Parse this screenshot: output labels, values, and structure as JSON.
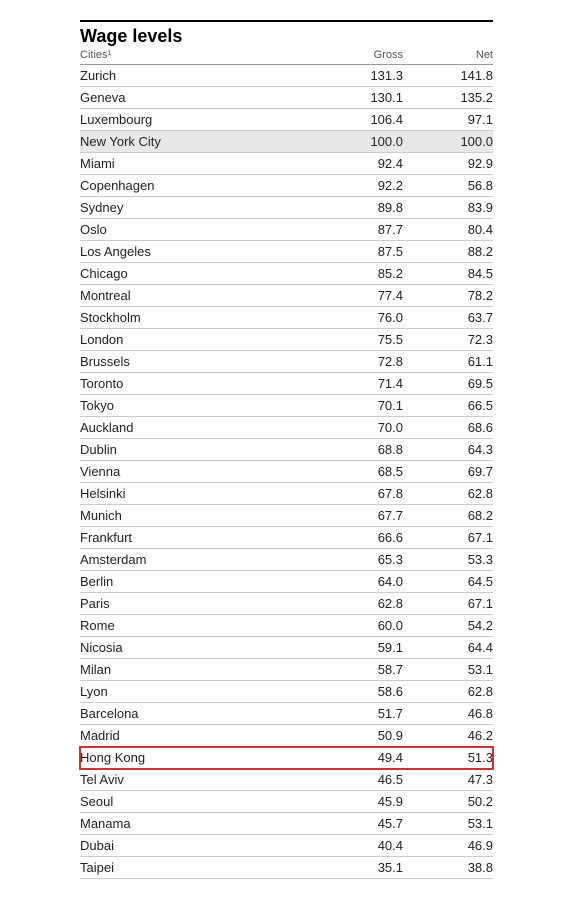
{
  "table": {
    "title": "Wage levels",
    "columns": {
      "city_label": "Cities¹",
      "gross_label": "Gross",
      "net_label": "Net"
    },
    "shaded_color": "#e8e8e8",
    "highlight_color": "#cc3333",
    "border_color": "#cccccc",
    "top_rule_color": "#000000",
    "rows": [
      {
        "city": "Zurich",
        "gross": "131.3",
        "net": "141.8",
        "shaded": false,
        "highlighted": false
      },
      {
        "city": "Geneva",
        "gross": "130.1",
        "net": "135.2",
        "shaded": false,
        "highlighted": false
      },
      {
        "city": "Luxembourg",
        "gross": "106.4",
        "net": "97.1",
        "shaded": false,
        "highlighted": false
      },
      {
        "city": "New York City",
        "gross": "100.0",
        "net": "100.0",
        "shaded": true,
        "highlighted": false
      },
      {
        "city": "Miami",
        "gross": "92.4",
        "net": "92.9",
        "shaded": false,
        "highlighted": false
      },
      {
        "city": "Copenhagen",
        "gross": "92.2",
        "net": "56.8",
        "shaded": false,
        "highlighted": false
      },
      {
        "city": "Sydney",
        "gross": "89.8",
        "net": "83.9",
        "shaded": false,
        "highlighted": false
      },
      {
        "city": "Oslo",
        "gross": "87.7",
        "net": "80.4",
        "shaded": false,
        "highlighted": false
      },
      {
        "city": "Los Angeles",
        "gross": "87.5",
        "net": "88.2",
        "shaded": false,
        "highlighted": false
      },
      {
        "city": "Chicago",
        "gross": "85.2",
        "net": "84.5",
        "shaded": false,
        "highlighted": false
      },
      {
        "city": "Montreal",
        "gross": "77.4",
        "net": "78.2",
        "shaded": false,
        "highlighted": false
      },
      {
        "city": "Stockholm",
        "gross": "76.0",
        "net": "63.7",
        "shaded": false,
        "highlighted": false
      },
      {
        "city": "London",
        "gross": "75.5",
        "net": "72.3",
        "shaded": false,
        "highlighted": false
      },
      {
        "city": "Brussels",
        "gross": "72.8",
        "net": "61.1",
        "shaded": false,
        "highlighted": false
      },
      {
        "city": "Toronto",
        "gross": "71.4",
        "net": "69.5",
        "shaded": false,
        "highlighted": false
      },
      {
        "city": "Tokyo",
        "gross": "70.1",
        "net": "66.5",
        "shaded": false,
        "highlighted": false
      },
      {
        "city": "Auckland",
        "gross": "70.0",
        "net": "68.6",
        "shaded": false,
        "highlighted": false
      },
      {
        "city": "Dublin",
        "gross": "68.8",
        "net": "64.3",
        "shaded": false,
        "highlighted": false
      },
      {
        "city": "Vienna",
        "gross": "68.5",
        "net": "69.7",
        "shaded": false,
        "highlighted": false
      },
      {
        "city": "Helsinki",
        "gross": "67.8",
        "net": "62.8",
        "shaded": false,
        "highlighted": false
      },
      {
        "city": "Munich",
        "gross": "67.7",
        "net": "68.2",
        "shaded": false,
        "highlighted": false
      },
      {
        "city": "Frankfurt",
        "gross": "66.6",
        "net": "67.1",
        "shaded": false,
        "highlighted": false
      },
      {
        "city": "Amsterdam",
        "gross": "65.3",
        "net": "53.3",
        "shaded": false,
        "highlighted": false
      },
      {
        "city": "Berlin",
        "gross": "64.0",
        "net": "64.5",
        "shaded": false,
        "highlighted": false
      },
      {
        "city": "Paris",
        "gross": "62.8",
        "net": "67.1",
        "shaded": false,
        "highlighted": false
      },
      {
        "city": "Rome",
        "gross": "60.0",
        "net": "54.2",
        "shaded": false,
        "highlighted": false
      },
      {
        "city": "Nicosia",
        "gross": "59.1",
        "net": "64.4",
        "shaded": false,
        "highlighted": false
      },
      {
        "city": "Milan",
        "gross": "58.7",
        "net": "53.1",
        "shaded": false,
        "highlighted": false
      },
      {
        "city": "Lyon",
        "gross": "58.6",
        "net": "62.8",
        "shaded": false,
        "highlighted": false
      },
      {
        "city": "Barcelona",
        "gross": "51.7",
        "net": "46.8",
        "shaded": false,
        "highlighted": false
      },
      {
        "city": "Madrid",
        "gross": "50.9",
        "net": "46.2",
        "shaded": false,
        "highlighted": false
      },
      {
        "city": "Hong Kong",
        "gross": "49.4",
        "net": "51.3",
        "shaded": false,
        "highlighted": true
      },
      {
        "city": "Tel Aviv",
        "gross": "46.5",
        "net": "47.3",
        "shaded": false,
        "highlighted": false
      },
      {
        "city": "Seoul",
        "gross": "45.9",
        "net": "50.2",
        "shaded": false,
        "highlighted": false
      },
      {
        "city": "Manama",
        "gross": "45.7",
        "net": "53.1",
        "shaded": false,
        "highlighted": false
      },
      {
        "city": "Dubai",
        "gross": "40.4",
        "net": "46.9",
        "shaded": false,
        "highlighted": false
      },
      {
        "city": "Taipei",
        "gross": "35.1",
        "net": "38.8",
        "shaded": false,
        "highlighted": false
      }
    ]
  }
}
